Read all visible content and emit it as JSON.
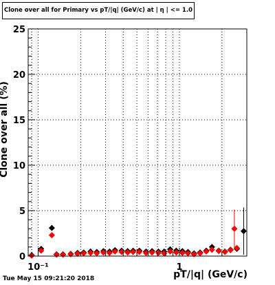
{
  "timestamp": "Tue May 15 09:21:20 2018",
  "chart_data": {
    "type": "scatter",
    "title": "Clone  over all for Primary vs pT/|q| (GeV/c) at |  η | <= 1.0",
    "xlabel": "pT/|q| (GeV/c)",
    "ylabel": "Clone  over all (%)",
    "xscale": "log",
    "xlim": [
      0.085,
      3.0
    ],
    "ylim": [
      0,
      25
    ],
    "grid": true,
    "xticks": [
      {
        "value": 0.1,
        "label": "10⁻¹"
      },
      {
        "value": 1,
        "label": "1"
      }
    ],
    "yticks": [
      0,
      5,
      10,
      15,
      20,
      25
    ],
    "series": [
      {
        "color": "#000000",
        "points": [
          {
            "x": 0.09,
            "y": 0.1
          },
          {
            "x": 0.105,
            "y": 0.8
          },
          {
            "x": 0.125,
            "y": 3.1
          },
          {
            "x": 0.135,
            "y": 0.2
          },
          {
            "x": 0.15,
            "y": 0.2
          },
          {
            "x": 0.17,
            "y": 0.25
          },
          {
            "x": 0.19,
            "y": 0.35
          },
          {
            "x": 0.21,
            "y": 0.4
          },
          {
            "x": 0.235,
            "y": 0.5
          },
          {
            "x": 0.26,
            "y": 0.45
          },
          {
            "x": 0.29,
            "y": 0.55
          },
          {
            "x": 0.32,
            "y": 0.5
          },
          {
            "x": 0.35,
            "y": 0.65
          },
          {
            "x": 0.39,
            "y": 0.6
          },
          {
            "x": 0.43,
            "y": 0.55
          },
          {
            "x": 0.47,
            "y": 0.6
          },
          {
            "x": 0.52,
            "y": 0.6
          },
          {
            "x": 0.58,
            "y": 0.5
          },
          {
            "x": 0.64,
            "y": 0.55
          },
          {
            "x": 0.71,
            "y": 0.5
          },
          {
            "x": 0.78,
            "y": 0.5
          },
          {
            "x": 0.86,
            "y": 0.75
          },
          {
            "x": 0.95,
            "y": 0.6
          },
          {
            "x": 1.05,
            "y": 0.55
          },
          {
            "x": 1.15,
            "y": 0.45
          },
          {
            "x": 1.27,
            "y": 0.3
          },
          {
            "x": 1.4,
            "y": 0.4
          },
          {
            "x": 1.55,
            "y": 0.6
          },
          {
            "x": 1.7,
            "y": 1.0
          },
          {
            "x": 1.9,
            "y": 0.6
          },
          {
            "x": 2.1,
            "y": 0.5
          },
          {
            "x": 2.3,
            "y": 0.7
          },
          {
            "x": 2.55,
            "y": 0.8
          },
          {
            "x": 2.85,
            "y": 2.75,
            "err": 2.6
          }
        ]
      },
      {
        "color": "#ff0000",
        "points": [
          {
            "x": 0.09,
            "y": 0.05
          },
          {
            "x": 0.105,
            "y": 0.6
          },
          {
            "x": 0.125,
            "y": 2.3
          },
          {
            "x": 0.135,
            "y": 0.15
          },
          {
            "x": 0.15,
            "y": 0.15
          },
          {
            "x": 0.17,
            "y": 0.2
          },
          {
            "x": 0.19,
            "y": 0.25
          },
          {
            "x": 0.21,
            "y": 0.3
          },
          {
            "x": 0.235,
            "y": 0.35
          },
          {
            "x": 0.26,
            "y": 0.3
          },
          {
            "x": 0.29,
            "y": 0.4
          },
          {
            "x": 0.32,
            "y": 0.35
          },
          {
            "x": 0.35,
            "y": 0.5
          },
          {
            "x": 0.39,
            "y": 0.45
          },
          {
            "x": 0.43,
            "y": 0.4
          },
          {
            "x": 0.47,
            "y": 0.45
          },
          {
            "x": 0.52,
            "y": 0.45
          },
          {
            "x": 0.58,
            "y": 0.35
          },
          {
            "x": 0.64,
            "y": 0.4
          },
          {
            "x": 0.71,
            "y": 0.35
          },
          {
            "x": 0.78,
            "y": 0.3
          },
          {
            "x": 0.86,
            "y": 0.5
          },
          {
            "x": 0.95,
            "y": 0.4
          },
          {
            "x": 1.05,
            "y": 0.35
          },
          {
            "x": 1.15,
            "y": 0.3
          },
          {
            "x": 1.27,
            "y": 0.2
          },
          {
            "x": 1.4,
            "y": 0.3
          },
          {
            "x": 1.55,
            "y": 0.5
          },
          {
            "x": 1.7,
            "y": 0.7
          },
          {
            "x": 1.9,
            "y": 0.55
          },
          {
            "x": 2.1,
            "y": 0.45
          },
          {
            "x": 2.3,
            "y": 0.65
          },
          {
            "x": 2.55,
            "y": 0.9
          },
          {
            "x": 2.45,
            "y": 3.0,
            "err": 2.1
          }
        ]
      }
    ]
  }
}
